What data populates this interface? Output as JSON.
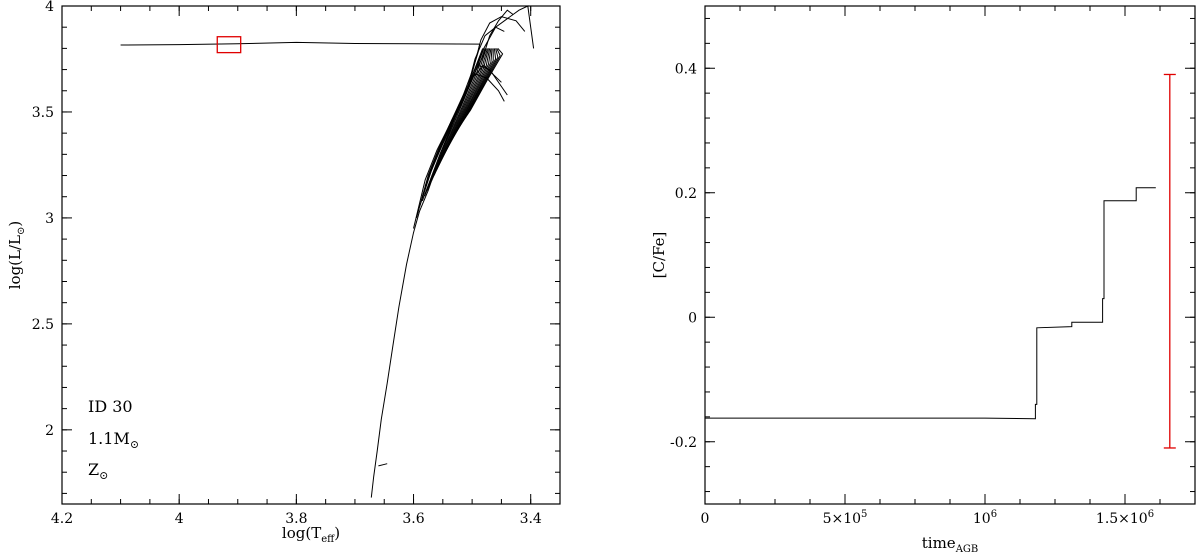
{
  "chart_data": [
    {
      "type": "line",
      "xlabel": "log(T",
      "xlabel_sub": "eff",
      "xlabel_close": ")",
      "ylabel": "log(L/L",
      "ylabel_sub": "⊙",
      "ylabel_close": ")",
      "xlim": [
        4.2,
        3.35
      ],
      "ylim": [
        1.65,
        4.0
      ],
      "x_ticks": [
        {
          "value": 4.2,
          "label": "4.2"
        },
        {
          "value": 4.0,
          "label": "4"
        },
        {
          "value": 3.8,
          "label": "3.8"
        },
        {
          "value": 3.6,
          "label": "3.6"
        },
        {
          "value": 3.4,
          "label": "3.4"
        }
      ],
      "y_ticks": [
        {
          "value": 2.0,
          "label": "2"
        },
        {
          "value": 2.5,
          "label": "2.5"
        },
        {
          "value": 3.0,
          "label": "3"
        },
        {
          "value": 3.5,
          "label": "3.5"
        },
        {
          "value": 4.0,
          "label": "4"
        }
      ],
      "annotations": {
        "id": "ID 30",
        "mass": "1.1M",
        "mass_sub": "⊙",
        "metal": "Z",
        "metal_sub": "⊙"
      },
      "marker_box": {
        "x": [
          3.935,
          3.895
        ],
        "y": [
          3.78,
          3.855
        ],
        "color": "#e00000"
      },
      "series": [
        {
          "points": [
            [
              3.672,
              1.68
            ],
            [
              3.668,
              1.78
            ],
            [
              3.662,
              1.9
            ],
            [
              3.655,
              2.05
            ],
            [
              3.645,
              2.22
            ],
            [
              3.635,
              2.4
            ],
            [
              3.625,
              2.58
            ],
            [
              3.612,
              2.78
            ],
            [
              3.6,
              2.93
            ],
            [
              3.59,
              3.03
            ],
            [
              3.575,
              3.13
            ],
            [
              3.56,
              3.25
            ],
            [
              3.545,
              3.36
            ],
            [
              3.53,
              3.47
            ],
            [
              3.515,
              3.58
            ],
            [
              3.5,
              3.69
            ],
            [
              3.49,
              3.78
            ],
            [
              3.487,
              3.82
            ],
            [
              3.6,
              3.822
            ],
            [
              3.7,
              3.823
            ],
            [
              3.8,
              3.828
            ],
            [
              3.9,
              3.822
            ],
            [
              4.0,
              3.818
            ],
            [
              4.1,
              3.816
            ]
          ]
        },
        {
          "points": [
            [
              3.6,
              2.95
            ],
            [
              3.58,
              3.18
            ],
            [
              3.56,
              3.32
            ],
            [
              3.54,
              3.43
            ],
            [
              3.52,
              3.54
            ],
            [
              3.5,
              3.66
            ],
            [
              3.48,
              3.77
            ],
            [
              3.47,
              3.86
            ],
            [
              3.455,
              3.93
            ],
            [
              3.44,
              3.98
            ],
            [
              3.43,
              3.96
            ]
          ]
        },
        {
          "points": [
            [
              3.595,
              3.0
            ],
            [
              3.575,
              3.2
            ],
            [
              3.555,
              3.34
            ],
            [
              3.535,
              3.46
            ],
            [
              3.515,
              3.57
            ],
            [
              3.495,
              3.7
            ],
            [
              3.48,
              3.8
            ],
            [
              3.46,
              3.9
            ],
            [
              3.44,
              3.94
            ],
            [
              3.42,
              3.98
            ],
            [
              3.405,
              4.0
            ],
            [
              3.395,
              3.8
            ]
          ]
        },
        {
          "points": [
            [
              3.585,
              3.1
            ],
            [
              3.565,
              3.26
            ],
            [
              3.545,
              3.38
            ],
            [
              3.525,
              3.5
            ],
            [
              3.505,
              3.62
            ],
            [
              3.49,
              3.72
            ],
            [
              3.47,
              3.7
            ],
            [
              3.45,
              3.62
            ],
            [
              3.44,
              3.58
            ]
          ]
        },
        {
          "points": [
            [
              3.59,
              3.05
            ],
            [
              3.57,
              3.22
            ],
            [
              3.55,
              3.36
            ],
            [
              3.53,
              3.48
            ],
            [
              3.51,
              3.6
            ],
            [
              3.495,
              3.68
            ],
            [
              3.475,
              3.66
            ],
            [
              3.455,
              3.6
            ],
            [
              3.445,
              3.55
            ]
          ]
        },
        {
          "points": [
            [
              3.58,
              3.15
            ],
            [
              3.56,
              3.3
            ],
            [
              3.54,
              3.42
            ],
            [
              3.52,
              3.53
            ],
            [
              3.505,
              3.63
            ],
            [
              3.485,
              3.84
            ],
            [
              3.47,
              3.92
            ],
            [
              3.45,
              3.95
            ],
            [
              3.425,
              3.93
            ],
            [
              3.41,
              3.88
            ]
          ]
        },
        {
          "points": [
            [
              3.575,
              3.2
            ],
            [
              3.555,
              3.34
            ],
            [
              3.535,
              3.46
            ],
            [
              3.515,
              3.58
            ],
            [
              3.5,
              3.66
            ],
            [
              3.48,
              3.72
            ],
            [
              3.465,
              3.68
            ],
            [
              3.45,
              3.64
            ]
          ]
        },
        {
          "points": [
            [
              3.57,
              3.22
            ],
            [
              3.55,
              3.35
            ],
            [
              3.53,
              3.47
            ],
            [
              3.51,
              3.59
            ],
            [
              3.495,
              3.75
            ],
            [
              3.478,
              3.86
            ],
            [
              3.46,
              3.9
            ],
            [
              3.445,
              3.88
            ]
          ]
        },
        {
          "points": [
            [
              3.66,
              1.83
            ],
            [
              3.645,
              1.84
            ]
          ]
        }
      ]
    },
    {
      "type": "line",
      "xlabel": "time",
      "xlabel_sub": "AGB",
      "ylabel": "[C/Fe]",
      "xlim": [
        0,
        1750000
      ],
      "ylim": [
        -0.3,
        0.5
      ],
      "x_ticks": [
        {
          "value": 0,
          "label": "0",
          "sup": ""
        },
        {
          "value": 500000,
          "label": "5×10",
          "sup": "5"
        },
        {
          "value": 1000000,
          "label": "10",
          "sup": "6"
        },
        {
          "value": 1500000,
          "label": "1.5×10",
          "sup": "6"
        }
      ],
      "y_ticks": [
        {
          "value": -0.2,
          "label": "-0.2"
        },
        {
          "value": 0.0,
          "label": "0"
        },
        {
          "value": 0.2,
          "label": "0.2"
        },
        {
          "value": 0.4,
          "label": "0.4"
        }
      ],
      "series": [
        {
          "points": [
            [
              0,
              -0.162
            ],
            [
              1000000,
              -0.162
            ],
            [
              1180000,
              -0.163
            ],
            [
              1180000,
              -0.14
            ],
            [
              1185000,
              -0.14
            ],
            [
              1185000,
              -0.017
            ],
            [
              1310000,
              -0.015
            ],
            [
              1310000,
              -0.008
            ],
            [
              1420000,
              -0.008
            ],
            [
              1420000,
              0.03
            ],
            [
              1425000,
              0.03
            ],
            [
              1425000,
              0.187
            ],
            [
              1540000,
              0.187
            ],
            [
              1540000,
              0.208
            ],
            [
              1610000,
              0.208
            ]
          ]
        }
      ],
      "error_bar": {
        "x": 1660000,
        "ymin": -0.21,
        "ymax": 0.39,
        "color": "#e00000"
      }
    }
  ]
}
